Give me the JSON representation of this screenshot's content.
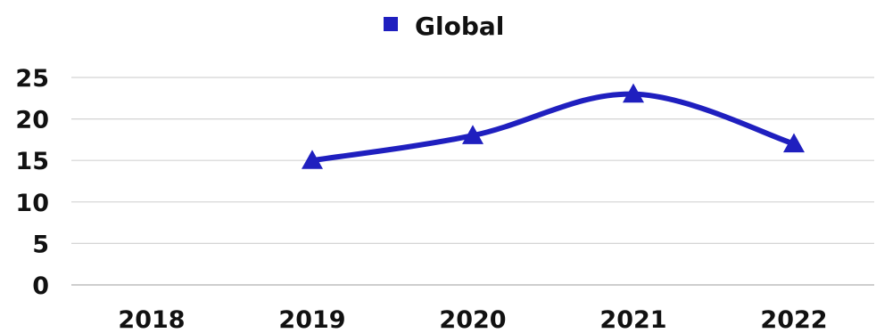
{
  "chart_data": {
    "type": "line",
    "categories": [
      "2018",
      "2019",
      "2020",
      "2021",
      "2022"
    ],
    "series": [
      {
        "name": "Global",
        "values": [
          null,
          15,
          18,
          23,
          17
        ],
        "color": "#1f1fbf",
        "marker": "triangle"
      }
    ],
    "ylim": [
      0,
      25
    ],
    "yticks": [
      "0",
      "5",
      "10",
      "15",
      "20",
      "25"
    ],
    "grid": true,
    "smooth": true,
    "legend_position": "top-center"
  }
}
